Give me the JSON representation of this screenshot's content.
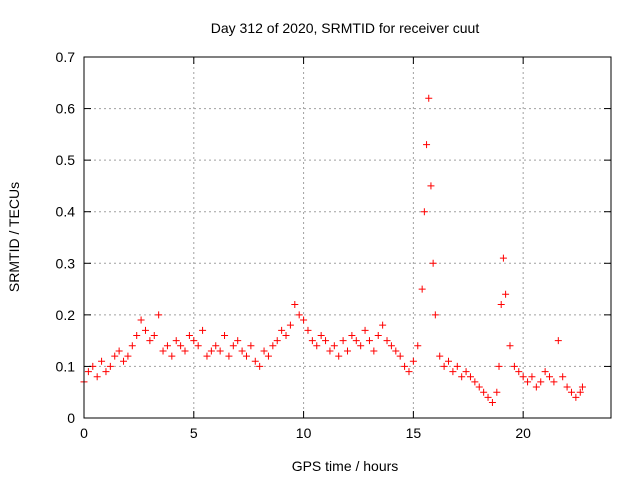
{
  "chart_data": {
    "type": "scatter",
    "title": "Day 312 of 2020, SRMTID for receiver cuut",
    "xlabel": "GPS time / hours",
    "ylabel": "SRMTID / TECUs",
    "xlim": [
      0,
      24
    ],
    "ylim": [
      0,
      0.7
    ],
    "xticks": [
      0,
      5,
      10,
      15,
      20
    ],
    "yticks": [
      0,
      0.1,
      0.2,
      0.3,
      0.4,
      0.5,
      0.6,
      0.7
    ],
    "xtick_labels": [
      "0",
      "5",
      "10",
      "15",
      "20"
    ],
    "ytick_labels": [
      "0",
      "0.1",
      "0.2",
      "0.3",
      "0.4",
      "0.5",
      "0.6",
      "0.7"
    ],
    "grid": true,
    "marker": "+",
    "color": "#ff0000",
    "series": [
      {
        "name": "cuut",
        "x": [
          0.0,
          0.2,
          0.4,
          0.6,
          0.8,
          1.0,
          1.2,
          1.4,
          1.6,
          1.8,
          2.0,
          2.2,
          2.4,
          2.6,
          2.8,
          3.0,
          3.2,
          3.4,
          3.6,
          3.8,
          4.0,
          4.2,
          4.4,
          4.6,
          4.8,
          5.0,
          5.2,
          5.4,
          5.6,
          5.8,
          6.0,
          6.2,
          6.4,
          6.6,
          6.8,
          7.0,
          7.2,
          7.4,
          7.6,
          7.8,
          8.0,
          8.2,
          8.4,
          8.6,
          8.8,
          9.0,
          9.2,
          9.4,
          9.6,
          9.8,
          10.0,
          10.2,
          10.4,
          10.6,
          10.8,
          11.0,
          11.2,
          11.4,
          11.6,
          11.8,
          12.0,
          12.2,
          12.4,
          12.6,
          12.8,
          13.0,
          13.2,
          13.4,
          13.6,
          13.8,
          14.0,
          14.2,
          14.4,
          14.6,
          14.8,
          15.0,
          15.2,
          15.4,
          15.5,
          15.6,
          15.7,
          15.8,
          15.9,
          16.0,
          16.2,
          16.4,
          16.6,
          16.8,
          17.0,
          17.2,
          17.4,
          17.6,
          17.8,
          18.0,
          18.2,
          18.4,
          18.6,
          18.8,
          18.9,
          19.0,
          19.1,
          19.2,
          19.4,
          19.6,
          19.8,
          20.0,
          20.2,
          20.4,
          20.6,
          20.8,
          21.0,
          21.2,
          21.4,
          21.6,
          21.8,
          22.0,
          22.2,
          22.4,
          22.6,
          22.7
        ],
        "y": [
          0.07,
          0.09,
          0.1,
          0.08,
          0.11,
          0.09,
          0.1,
          0.12,
          0.13,
          0.11,
          0.12,
          0.14,
          0.16,
          0.19,
          0.17,
          0.15,
          0.16,
          0.2,
          0.13,
          0.14,
          0.12,
          0.15,
          0.14,
          0.13,
          0.16,
          0.15,
          0.14,
          0.17,
          0.12,
          0.13,
          0.14,
          0.13,
          0.16,
          0.12,
          0.14,
          0.15,
          0.13,
          0.12,
          0.14,
          0.11,
          0.1,
          0.13,
          0.12,
          0.14,
          0.15,
          0.17,
          0.16,
          0.18,
          0.22,
          0.2,
          0.19,
          0.17,
          0.15,
          0.14,
          0.16,
          0.15,
          0.13,
          0.14,
          0.12,
          0.15,
          0.13,
          0.16,
          0.15,
          0.14,
          0.17,
          0.15,
          0.13,
          0.16,
          0.18,
          0.15,
          0.14,
          0.13,
          0.12,
          0.1,
          0.09,
          0.11,
          0.14,
          0.25,
          0.4,
          0.53,
          0.62,
          0.45,
          0.3,
          0.2,
          0.12,
          0.1,
          0.11,
          0.09,
          0.1,
          0.08,
          0.09,
          0.08,
          0.07,
          0.06,
          0.05,
          0.04,
          0.03,
          0.05,
          0.1,
          0.22,
          0.31,
          0.24,
          0.14,
          0.1,
          0.09,
          0.08,
          0.07,
          0.08,
          0.06,
          0.07,
          0.09,
          0.08,
          0.07,
          0.15,
          0.08,
          0.06,
          0.05,
          0.04,
          0.05,
          0.06
        ]
      }
    ]
  }
}
